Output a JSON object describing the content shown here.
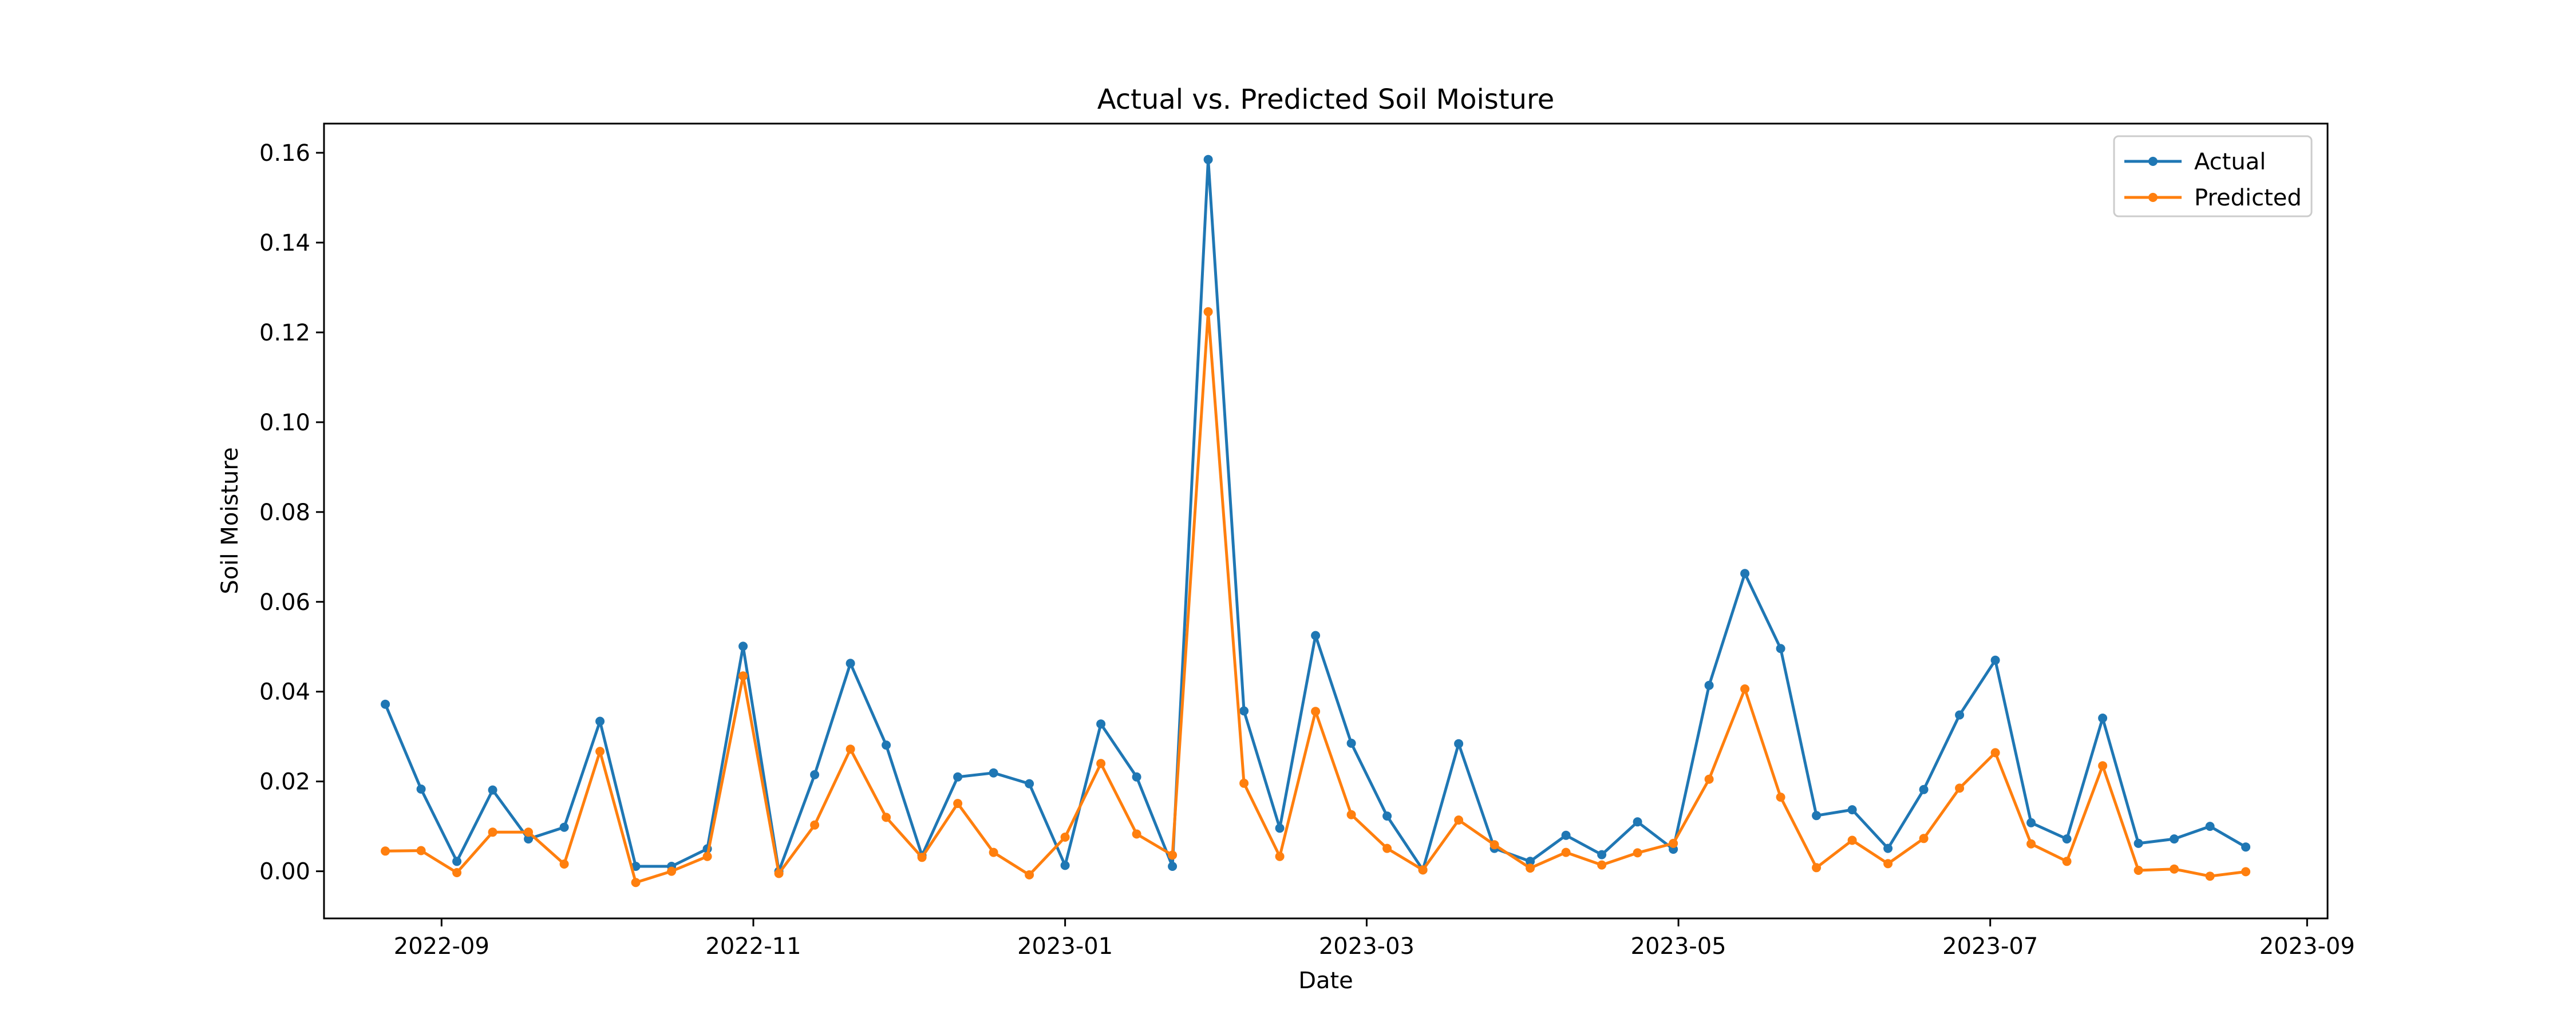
{
  "chart_data": {
    "type": "line",
    "title": "Actual vs. Predicted Soil Moisture",
    "xlabel": "Date",
    "ylabel": "Soil Moisture",
    "x_axis": {
      "type": "date",
      "range": [
        "2022-08-09",
        "2023-09-05"
      ],
      "ticks": [
        "2022-09-01",
        "2022-11-01",
        "2023-01-01",
        "2023-03-01",
        "2023-05-01",
        "2023-07-01",
        "2023-09-01"
      ],
      "tick_labels": [
        "2022-09",
        "2022-11",
        "2023-01",
        "2023-03",
        "2023-05",
        "2023-07",
        "2023-09"
      ]
    },
    "y_axis": {
      "range": [
        -0.0105,
        0.1665
      ],
      "ticks": [
        0.0,
        0.02,
        0.04,
        0.06,
        0.08,
        0.1,
        0.12,
        0.14,
        0.16
      ],
      "tick_labels": [
        "0.00",
        "0.02",
        "0.04",
        "0.06",
        "0.08",
        "0.10",
        "0.12",
        "0.14",
        "0.16"
      ]
    },
    "grid": false,
    "legend": "top-right",
    "x": [
      "2022-08-21",
      "2022-08-28",
      "2022-09-04",
      "2022-09-11",
      "2022-09-18",
      "2022-09-25",
      "2022-10-02",
      "2022-10-09",
      "2022-10-16",
      "2022-10-23",
      "2022-10-30",
      "2022-11-06",
      "2022-11-13",
      "2022-11-20",
      "2022-11-27",
      "2022-12-04",
      "2022-12-11",
      "2022-12-18",
      "2022-12-25",
      "2023-01-01",
      "2023-01-08",
      "2023-01-15",
      "2023-01-22",
      "2023-01-29",
      "2023-02-05",
      "2023-02-12",
      "2023-02-19",
      "2023-02-26",
      "2023-03-05",
      "2023-03-12",
      "2023-03-19",
      "2023-03-26",
      "2023-04-02",
      "2023-04-09",
      "2023-04-16",
      "2023-04-23",
      "2023-04-30",
      "2023-05-07",
      "2023-05-14",
      "2023-05-21",
      "2023-05-28",
      "2023-06-04",
      "2023-06-11",
      "2023-06-18",
      "2023-06-25",
      "2023-07-02",
      "2023-07-09",
      "2023-07-16",
      "2023-07-23",
      "2023-07-30",
      "2023-08-06",
      "2023-08-13",
      "2023-08-20"
    ],
    "series": [
      {
        "name": "Actual",
        "color": "#1f77b4",
        "values": [
          0.0372,
          0.0183,
          0.0022,
          0.0181,
          0.0072,
          0.0098,
          0.0334,
          0.0011,
          0.0011,
          0.005,
          0.0501,
          0.0,
          0.0215,
          0.0463,
          0.0281,
          0.0035,
          0.021,
          0.0219,
          0.0195,
          0.0013,
          0.0328,
          0.021,
          0.0011,
          0.1585,
          0.0357,
          0.0096,
          0.0525,
          0.0285,
          0.0123,
          0.0003,
          0.0284,
          0.0051,
          0.0022,
          0.008,
          0.0037,
          0.011,
          0.0049,
          0.0414,
          0.0663,
          0.0496,
          0.0124,
          0.0137,
          0.0051,
          0.0182,
          0.0348,
          0.047,
          0.0108,
          0.0072,
          0.0341,
          0.0062,
          0.0072,
          0.01,
          0.0054
        ]
      },
      {
        "name": "Predicted",
        "color": "#ff7f0e",
        "values": [
          0.0045,
          0.0046,
          -0.0003,
          0.0087,
          0.0087,
          0.0016,
          0.0267,
          -0.0025,
          0.0,
          0.0033,
          0.0435,
          -0.0005,
          0.0103,
          0.0272,
          0.012,
          0.0031,
          0.0151,
          0.0042,
          -0.0008,
          0.0076,
          0.024,
          0.0083,
          0.0036,
          0.1246,
          0.0196,
          0.0033,
          0.0356,
          0.0126,
          0.0051,
          0.0003,
          0.0114,
          0.0059,
          0.0007,
          0.0042,
          0.0014,
          0.0041,
          0.0062,
          0.0205,
          0.0406,
          0.0165,
          0.0008,
          0.0069,
          0.0017,
          0.0073,
          0.0185,
          0.0264,
          0.0061,
          0.0022,
          0.0235,
          0.0002,
          0.0005,
          -0.0011,
          -0.0001
        ]
      }
    ]
  }
}
